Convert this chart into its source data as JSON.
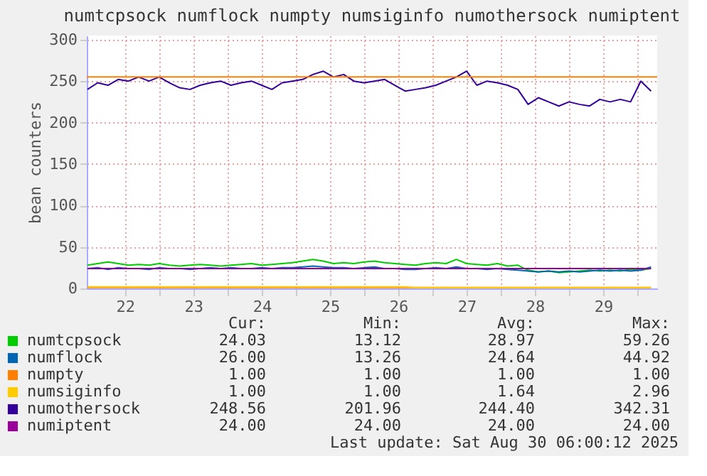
{
  "chart_data": {
    "type": "line",
    "title": "numtcpsock numflock numpty numsiginfo numothersock numiptent",
    "ylabel": "bean counters",
    "x": [
      21.95,
      22.1,
      22.25,
      22.4,
      22.55,
      22.7,
      22.85,
      23.0,
      23.15,
      23.3,
      23.45,
      23.6,
      23.75,
      23.9,
      24.05,
      24.2,
      24.35,
      24.5,
      24.65,
      24.8,
      24.95,
      25.1,
      25.25,
      25.4,
      25.55,
      25.7,
      25.85,
      26.0,
      26.15,
      26.3,
      26.45,
      26.6,
      26.75,
      26.9,
      27.05,
      27.2,
      27.35,
      27.5,
      27.65,
      27.8,
      27.95,
      28.1,
      28.25,
      28.4,
      28.55,
      28.7,
      28.85,
      29.0,
      29.15,
      29.3,
      29.45,
      29.6,
      29.75,
      29.9,
      30.05,
      30.2
    ],
    "series": [
      {
        "name": "numtcpsock",
        "color": "#00cc00",
        "values": [
          28,
          30,
          32,
          30,
          28,
          29,
          28,
          30,
          28,
          27,
          28,
          29,
          28,
          27,
          28,
          29,
          30,
          28,
          29,
          30,
          31,
          33,
          35,
          33,
          30,
          31,
          30,
          32,
          33,
          31,
          30,
          29,
          28,
          30,
          31,
          30,
          35,
          30,
          29,
          28,
          30,
          27,
          28,
          22,
          20,
          21,
          19,
          20,
          21,
          22,
          21,
          22,
          21,
          23,
          22,
          24
        ]
      },
      {
        "name": "numflock",
        "color": "#0066b3",
        "values": [
          24,
          25,
          23,
          25,
          24,
          24,
          23,
          25,
          24,
          24,
          23,
          24,
          25,
          24,
          25,
          24,
          24,
          25,
          24,
          25,
          25,
          26,
          27,
          26,
          25,
          25,
          24,
          25,
          26,
          24,
          24,
          23,
          23,
          24,
          25,
          24,
          26,
          24,
          24,
          23,
          24,
          23,
          22,
          21,
          20,
          21,
          20,
          21,
          20,
          21,
          22,
          21,
          22,
          21,
          22,
          26
        ]
      },
      {
        "name": "numpty",
        "color": "#ff8000",
        "values": [
          1,
          1,
          1,
          1,
          1,
          1,
          1,
          1,
          1,
          1,
          1,
          1,
          1,
          1,
          1,
          1,
          1,
          1,
          1,
          1,
          1,
          1,
          1,
          1,
          1,
          1,
          1,
          1,
          1,
          1,
          1,
          1,
          1,
          1,
          1,
          1,
          1,
          1,
          1,
          1,
          1,
          1,
          1,
          1,
          1,
          1,
          1,
          1,
          1,
          1,
          1,
          1,
          1,
          1,
          1,
          1
        ]
      },
      {
        "name": "numsiginfo",
        "color": "#ffcc00",
        "values": [
          2,
          2,
          2,
          2,
          2,
          2,
          2,
          2,
          2,
          2,
          2,
          2,
          2,
          2,
          2,
          2,
          2,
          2,
          2,
          2,
          2,
          2,
          2,
          2,
          2,
          2,
          2,
          2,
          2,
          2,
          2,
          2,
          1,
          1,
          1,
          1,
          1,
          1,
          1,
          1,
          1,
          1,
          1,
          1,
          1,
          1,
          1,
          1,
          1,
          1,
          1,
          1,
          1,
          1,
          1,
          1
        ]
      },
      {
        "name": "numothersock",
        "color": "#330099",
        "values": [
          240,
          248,
          245,
          252,
          250,
          255,
          250,
          255,
          248,
          242,
          240,
          245,
          248,
          250,
          245,
          248,
          250,
          245,
          240,
          248,
          250,
          252,
          258,
          262,
          255,
          258,
          250,
          248,
          250,
          252,
          245,
          238,
          240,
          242,
          245,
          250,
          255,
          262,
          245,
          250,
          248,
          245,
          240,
          222,
          230,
          225,
          220,
          225,
          222,
          220,
          228,
          225,
          228,
          225,
          250,
          238
        ]
      },
      {
        "name": "numiptent",
        "color": "#990099",
        "values": [
          24,
          24,
          24,
          24,
          24,
          24,
          24,
          24,
          24,
          24,
          24,
          24,
          24,
          24,
          24,
          24,
          24,
          24,
          24,
          24,
          24,
          24,
          24,
          24,
          24,
          24,
          24,
          24,
          24,
          24,
          24,
          24,
          24,
          24,
          24,
          24,
          24,
          24,
          24,
          24,
          24,
          24,
          24,
          24,
          24,
          24,
          24,
          24,
          24,
          24,
          24,
          24,
          24,
          24,
          24,
          24
        ]
      }
    ],
    "xlim": [
      21.94,
      30.29
    ],
    "xticks": [
      {
        "value": 22.5,
        "label": "22"
      },
      {
        "value": 23,
        "label": null
      },
      {
        "value": 23.5,
        "label": "23"
      },
      {
        "value": 24,
        "label": null
      },
      {
        "value": 24.5,
        "label": "24"
      },
      {
        "value": 25,
        "label": null
      },
      {
        "value": 25.5,
        "label": "25"
      },
      {
        "value": 26,
        "label": null
      },
      {
        "value": 26.5,
        "label": "26"
      },
      {
        "value": 27,
        "label": null
      },
      {
        "value": 27.5,
        "label": "27"
      },
      {
        "value": 28,
        "label": null
      },
      {
        "value": 28.5,
        "label": "28"
      },
      {
        "value": 29,
        "label": null
      },
      {
        "value": 29.5,
        "label": "29"
      },
      {
        "value": 30,
        "label": null
      }
    ],
    "ylim": [
      0,
      305
    ],
    "yticks": [
      0,
      50,
      100,
      150,
      200,
      250,
      300
    ],
    "grid": true,
    "legend": "bottom",
    "ref_lines": [
      {
        "axis": "y",
        "value": 255,
        "color": "#ff8000"
      }
    ],
    "annotations": [
      "Cur:",
      "Min:",
      "Avg:",
      "Max:",
      "24.03",
      "13.12",
      "28.97",
      "59.26",
      "26.00",
      "13.26",
      "24.64",
      "44.92",
      "1.00",
      "1.00",
      "1.00",
      "1.00",
      "1.00",
      "1.00",
      "1.64",
      "2.96",
      "248.56",
      "201.96",
      "244.40",
      "342.31",
      "24.00",
      "24.00",
      "24.00",
      "24.00",
      "Last update: Sat Aug 30 06:00:12 2025"
    ]
  }
}
